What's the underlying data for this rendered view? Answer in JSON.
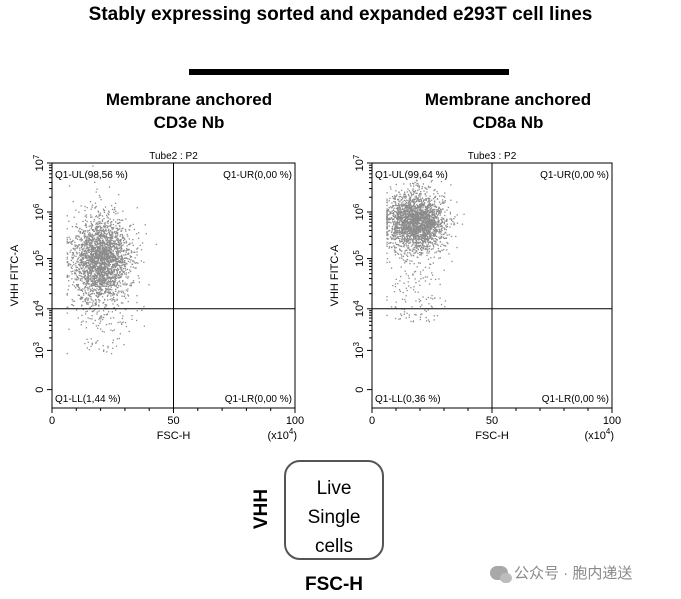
{
  "title": "Stably expressing sorted and expanded e293T cell lines",
  "panels": [
    {
      "heading_line1": "Membrane anchored",
      "heading_line2": "CD3e Nb"
    },
    {
      "heading_line1": "Membrane anchored",
      "heading_line2": "CD8a Nb"
    }
  ],
  "legend": {
    "line1": "Live",
    "line2": "Single",
    "line3": "cells",
    "y_axis": "VHH",
    "x_axis": "FSC-H"
  },
  "watermark": "公众号 · 胞内递送",
  "colors": {
    "dots": "#8c8c8c",
    "axis": "#000000"
  },
  "chart_data": [
    {
      "type": "scatter",
      "title": "Tube2 : P2",
      "xlabel": "FSC-H",
      "ylabel": "VHH FITC-A",
      "x_multiplier_label": "(x 10^4)",
      "xlim": [
        0,
        100
      ],
      "x_ticks": [
        "0",
        "50",
        "100"
      ],
      "y_scale": "biexponential",
      "y_ticks": [
        "0",
        "10^3",
        "10^4",
        "10^5",
        "10^6",
        "10^7"
      ],
      "gate_x": 50,
      "gate_y": "10^4",
      "quadrants": {
        "UL": {
          "label": "Q1-UL(98,56 %)",
          "percent": 98.56
        },
        "UR": {
          "label": "Q1-UR(0,00 %)",
          "percent": 0.0
        },
        "LL": {
          "label": "Q1-LL(1,44 %)",
          "percent": 1.44
        },
        "LR": {
          "label": "Q1-LR(0,00 %)",
          "percent": 0.0
        }
      },
      "population": {
        "fsc_center": 20,
        "fsc_spread": 6,
        "log_fitc_center": 5.0,
        "log_fitc_spread": 0.45
      }
    },
    {
      "type": "scatter",
      "title": "Tube3 : P2",
      "xlabel": "FSC-H",
      "ylabel": "VHH FITC-A",
      "x_multiplier_label": "(x 10^4)",
      "xlim": [
        0,
        100
      ],
      "x_ticks": [
        "0",
        "50",
        "100"
      ],
      "y_scale": "biexponential",
      "y_ticks": [
        "0",
        "10^3",
        "10^4",
        "10^5",
        "10^6",
        "10^7"
      ],
      "gate_x": 50,
      "gate_y": "10^4",
      "quadrants": {
        "UL": {
          "label": "Q1-UL(99,64 %)",
          "percent": 99.64
        },
        "UR": {
          "label": "Q1-UR(0,00 %)",
          "percent": 0.0
        },
        "LL": {
          "label": "Q1-LL(0,36 %)",
          "percent": 0.36
        },
        "LR": {
          "label": "Q1-LR(0,00 %)",
          "percent": 0.0
        }
      },
      "population": {
        "fsc_center": 18,
        "fsc_spread": 6,
        "log_fitc_center": 5.8,
        "log_fitc_spread": 0.3
      }
    }
  ]
}
